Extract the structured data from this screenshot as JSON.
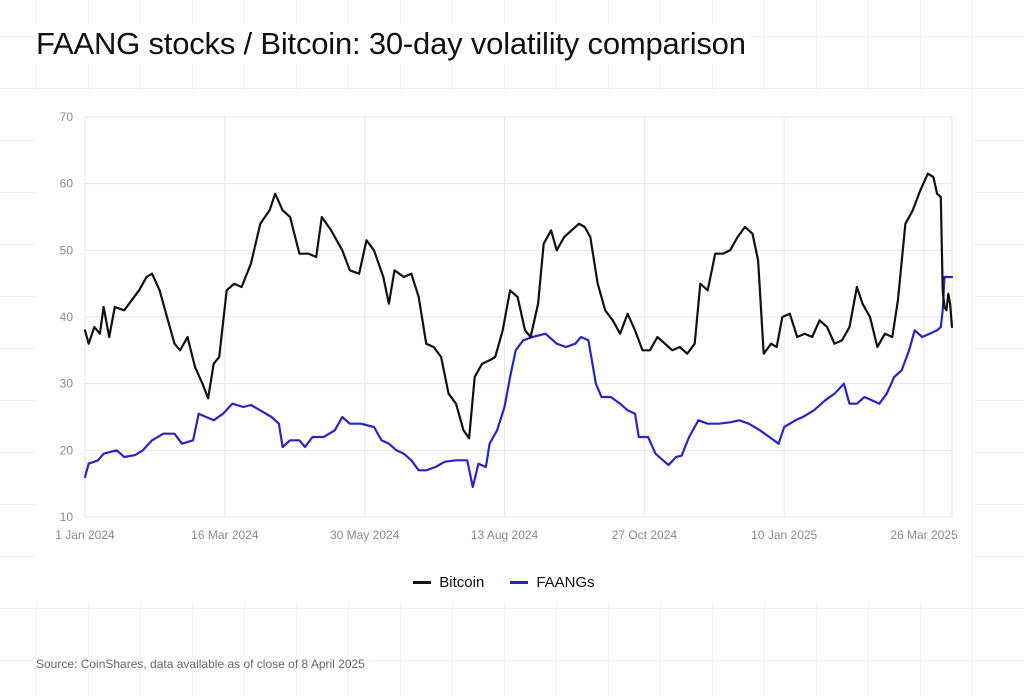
{
  "title": "FAANG stocks / Bitcoin: 30-day volatility comparison",
  "source": "Source: CoinShares, data available as of close of 8 April 2025",
  "chart_data": {
    "type": "line",
    "ylim": [
      10,
      70
    ],
    "yticks": [
      10,
      20,
      30,
      40,
      50,
      60,
      70
    ],
    "xlim": [
      "2024-01-01",
      "2025-04-10"
    ],
    "xticks": [
      {
        "date": "2024-01-01",
        "label": "1 Jan 2024"
      },
      {
        "date": "2024-03-16",
        "label": "16 Mar 2024"
      },
      {
        "date": "2024-05-30",
        "label": "30 May 2024"
      },
      {
        "date": "2024-08-13",
        "label": "13 Aug 2024"
      },
      {
        "date": "2024-10-27",
        "label": "27 Oct 2024"
      },
      {
        "date": "2025-01-10",
        "label": "10 Jan 2025"
      },
      {
        "date": "2025-03-26",
        "label": "26 Mar 2025"
      }
    ],
    "grid": true,
    "legend_position": "bottom",
    "series": [
      {
        "name": "Bitcoin",
        "color": "#111111",
        "points": [
          [
            "2024-01-01",
            38
          ],
          [
            "2024-01-03",
            36
          ],
          [
            "2024-01-06",
            38.5
          ],
          [
            "2024-01-09",
            37.5
          ],
          [
            "2024-01-11",
            41.5
          ],
          [
            "2024-01-14",
            37
          ],
          [
            "2024-01-17",
            41.5
          ],
          [
            "2024-01-22",
            41
          ],
          [
            "2024-01-26",
            42.5
          ],
          [
            "2024-01-30",
            44
          ],
          [
            "2024-02-03",
            46
          ],
          [
            "2024-02-06",
            46.5
          ],
          [
            "2024-02-10",
            44
          ],
          [
            "2024-02-14",
            40
          ],
          [
            "2024-02-18",
            36
          ],
          [
            "2024-02-21",
            35
          ],
          [
            "2024-02-25",
            37
          ],
          [
            "2024-02-29",
            32.5
          ],
          [
            "2024-03-04",
            30
          ],
          [
            "2024-03-07",
            27.8
          ],
          [
            "2024-03-10",
            33
          ],
          [
            "2024-03-13",
            34
          ],
          [
            "2024-03-17",
            44
          ],
          [
            "2024-03-21",
            45
          ],
          [
            "2024-03-25",
            44.5
          ],
          [
            "2024-03-30",
            48
          ],
          [
            "2024-04-04",
            54
          ],
          [
            "2024-04-09",
            56
          ],
          [
            "2024-04-12",
            58.5
          ],
          [
            "2024-04-16",
            56
          ],
          [
            "2024-04-20",
            55
          ],
          [
            "2024-04-25",
            49.5
          ],
          [
            "2024-04-30",
            49.5
          ],
          [
            "2024-05-04",
            49
          ],
          [
            "2024-05-07",
            55
          ],
          [
            "2024-05-12",
            53
          ],
          [
            "2024-05-18",
            50
          ],
          [
            "2024-05-22",
            47
          ],
          [
            "2024-05-27",
            46.5
          ],
          [
            "2024-05-31",
            51.5
          ],
          [
            "2024-06-04",
            50
          ],
          [
            "2024-06-09",
            46
          ],
          [
            "2024-06-12",
            42
          ],
          [
            "2024-06-15",
            47
          ],
          [
            "2024-06-20",
            46
          ],
          [
            "2024-06-24",
            46.5
          ],
          [
            "2024-06-28",
            43
          ],
          [
            "2024-07-02",
            36
          ],
          [
            "2024-07-06",
            35.5
          ],
          [
            "2024-07-10",
            34
          ],
          [
            "2024-07-14",
            28.5
          ],
          [
            "2024-07-18",
            27
          ],
          [
            "2024-07-22",
            23
          ],
          [
            "2024-07-25",
            21.8
          ],
          [
            "2024-07-28",
            31
          ],
          [
            "2024-08-01",
            33
          ],
          [
            "2024-08-05",
            33.5
          ],
          [
            "2024-08-08",
            34
          ],
          [
            "2024-08-12",
            38
          ],
          [
            "2024-08-16",
            44
          ],
          [
            "2024-08-20",
            43
          ],
          [
            "2024-08-24",
            38
          ],
          [
            "2024-08-27",
            37
          ],
          [
            "2024-08-31",
            42
          ],
          [
            "2024-09-03",
            51
          ],
          [
            "2024-09-07",
            53
          ],
          [
            "2024-09-10",
            50
          ],
          [
            "2024-09-14",
            52
          ],
          [
            "2024-09-18",
            53
          ],
          [
            "2024-09-22",
            54
          ],
          [
            "2024-09-25",
            53.5
          ],
          [
            "2024-09-28",
            52
          ],
          [
            "2024-10-02",
            45
          ],
          [
            "2024-10-06",
            41
          ],
          [
            "2024-10-10",
            39.5
          ],
          [
            "2024-10-14",
            37.5
          ],
          [
            "2024-10-18",
            40.5
          ],
          [
            "2024-10-22",
            38
          ],
          [
            "2024-10-26",
            35
          ],
          [
            "2024-10-30",
            35
          ],
          [
            "2024-11-03",
            37
          ],
          [
            "2024-11-07",
            36
          ],
          [
            "2024-11-11",
            35
          ],
          [
            "2024-11-15",
            35.5
          ],
          [
            "2024-11-19",
            34.5
          ],
          [
            "2024-11-23",
            36
          ],
          [
            "2024-11-26",
            45
          ],
          [
            "2024-11-30",
            44
          ],
          [
            "2024-12-04",
            49.5
          ],
          [
            "2024-12-08",
            49.5
          ],
          [
            "2024-12-12",
            50
          ],
          [
            "2024-12-16",
            52
          ],
          [
            "2024-12-20",
            53.5
          ],
          [
            "2024-12-24",
            52.5
          ],
          [
            "2024-12-27",
            48.5
          ],
          [
            "2024-12-30",
            34.5
          ],
          [
            "2025-01-03",
            36
          ],
          [
            "2025-01-06",
            35.5
          ],
          [
            "2025-01-09",
            40
          ],
          [
            "2025-01-13",
            40.5
          ],
          [
            "2025-01-17",
            37
          ],
          [
            "2025-01-21",
            37.5
          ],
          [
            "2025-01-25",
            37
          ],
          [
            "2025-01-29",
            39.5
          ],
          [
            "2025-02-02",
            38.5
          ],
          [
            "2025-02-06",
            36
          ],
          [
            "2025-02-10",
            36.5
          ],
          [
            "2025-02-14",
            38.5
          ],
          [
            "2025-02-18",
            44.5
          ],
          [
            "2025-02-21",
            42
          ],
          [
            "2025-02-25",
            40
          ],
          [
            "2025-03-01",
            35.5
          ],
          [
            "2025-03-05",
            37.5
          ],
          [
            "2025-03-09",
            37
          ],
          [
            "2025-03-12",
            42.5
          ],
          [
            "2025-03-16",
            54
          ],
          [
            "2025-03-20",
            56
          ],
          [
            "2025-03-24",
            59
          ],
          [
            "2025-03-28",
            61.5
          ],
          [
            "2025-03-31",
            61
          ],
          [
            "2025-04-02",
            58.5
          ],
          [
            "2025-04-04",
            58
          ],
          [
            "2025-04-05",
            44
          ],
          [
            "2025-04-06",
            41.5
          ],
          [
            "2025-04-07",
            41
          ],
          [
            "2025-04-08",
            43.5
          ],
          [
            "2025-04-09",
            42
          ],
          [
            "2025-04-10",
            38.5
          ]
        ]
      },
      {
        "name": "FAANGs",
        "color": "#2b25bf",
        "points": [
          [
            "2024-01-01",
            16
          ],
          [
            "2024-01-03",
            18
          ],
          [
            "2024-01-08",
            18.5
          ],
          [
            "2024-01-11",
            19.5
          ],
          [
            "2024-01-18",
            20
          ],
          [
            "2024-01-22",
            19
          ],
          [
            "2024-01-28",
            19.3
          ],
          [
            "2024-02-01",
            20
          ],
          [
            "2024-02-06",
            21.5
          ],
          [
            "2024-02-12",
            22.5
          ],
          [
            "2024-02-18",
            22.5
          ],
          [
            "2024-02-22",
            21
          ],
          [
            "2024-02-28",
            21.5
          ],
          [
            "2024-03-02",
            25.5
          ],
          [
            "2024-03-06",
            25
          ],
          [
            "2024-03-10",
            24.5
          ],
          [
            "2024-03-15",
            25.5
          ],
          [
            "2024-03-20",
            27
          ],
          [
            "2024-03-26",
            26.5
          ],
          [
            "2024-03-30",
            26.8
          ],
          [
            "2024-04-04",
            26
          ],
          [
            "2024-04-10",
            25
          ],
          [
            "2024-04-14",
            24
          ],
          [
            "2024-04-16",
            20.5
          ],
          [
            "2024-04-20",
            21.5
          ],
          [
            "2024-04-25",
            21.5
          ],
          [
            "2024-04-28",
            20.5
          ],
          [
            "2024-05-02",
            22
          ],
          [
            "2024-05-08",
            22
          ],
          [
            "2024-05-14",
            23
          ],
          [
            "2024-05-18",
            25
          ],
          [
            "2024-05-22",
            24
          ],
          [
            "2024-05-28",
            24
          ],
          [
            "2024-06-04",
            23.5
          ],
          [
            "2024-06-08",
            21.5
          ],
          [
            "2024-06-12",
            21
          ],
          [
            "2024-06-16",
            20
          ],
          [
            "2024-06-20",
            19.5
          ],
          [
            "2024-06-24",
            18.5
          ],
          [
            "2024-06-28",
            17
          ],
          [
            "2024-07-02",
            17
          ],
          [
            "2024-07-07",
            17.5
          ],
          [
            "2024-07-12",
            18.3
          ],
          [
            "2024-07-18",
            18.5
          ],
          [
            "2024-07-24",
            18.5
          ],
          [
            "2024-07-27",
            14.5
          ],
          [
            "2024-07-30",
            18
          ],
          [
            "2024-08-03",
            17.5
          ],
          [
            "2024-08-05",
            21
          ],
          [
            "2024-08-09",
            23
          ],
          [
            "2024-08-13",
            26.5
          ],
          [
            "2024-08-16",
            31
          ],
          [
            "2024-08-19",
            35
          ],
          [
            "2024-08-23",
            36.5
          ],
          [
            "2024-08-28",
            37
          ],
          [
            "2024-09-04",
            37.5
          ],
          [
            "2024-09-10",
            36
          ],
          [
            "2024-09-15",
            35.5
          ],
          [
            "2024-09-20",
            36
          ],
          [
            "2024-09-23",
            37
          ],
          [
            "2024-09-27",
            36.5
          ],
          [
            "2024-10-01",
            30
          ],
          [
            "2024-10-04",
            28
          ],
          [
            "2024-10-09",
            28
          ],
          [
            "2024-10-14",
            27
          ],
          [
            "2024-10-18",
            26
          ],
          [
            "2024-10-22",
            25.5
          ],
          [
            "2024-10-24",
            22
          ],
          [
            "2024-10-29",
            22
          ],
          [
            "2024-11-02",
            19.5
          ],
          [
            "2024-11-06",
            18.5
          ],
          [
            "2024-11-09",
            17.8
          ],
          [
            "2024-11-13",
            19
          ],
          [
            "2024-11-16",
            19.2
          ],
          [
            "2024-11-20",
            22
          ],
          [
            "2024-11-25",
            24.5
          ],
          [
            "2024-11-30",
            24
          ],
          [
            "2024-12-06",
            24
          ],
          [
            "2024-12-12",
            24.2
          ],
          [
            "2024-12-17",
            24.5
          ],
          [
            "2024-12-22",
            24
          ],
          [
            "2024-12-28",
            23
          ],
          [
            "2025-01-02",
            22
          ],
          [
            "2025-01-07",
            21
          ],
          [
            "2025-01-10",
            23.5
          ],
          [
            "2025-01-16",
            24.5
          ],
          [
            "2025-01-20",
            25
          ],
          [
            "2025-01-26",
            26
          ],
          [
            "2025-02-01",
            27.5
          ],
          [
            "2025-02-06",
            28.5
          ],
          [
            "2025-02-11",
            30
          ],
          [
            "2025-02-14",
            27
          ],
          [
            "2025-02-18",
            27
          ],
          [
            "2025-02-22",
            28
          ],
          [
            "2025-02-26",
            27.5
          ],
          [
            "2025-03-02",
            27
          ],
          [
            "2025-03-06",
            28.5
          ],
          [
            "2025-03-10",
            31
          ],
          [
            "2025-03-14",
            32
          ],
          [
            "2025-03-18",
            35
          ],
          [
            "2025-03-21",
            38
          ],
          [
            "2025-03-25",
            37
          ],
          [
            "2025-03-29",
            37.5
          ],
          [
            "2025-04-02",
            38
          ],
          [
            "2025-04-04",
            38.5
          ],
          [
            "2025-04-05",
            41
          ],
          [
            "2025-04-06",
            46
          ],
          [
            "2025-04-10",
            46
          ]
        ]
      }
    ]
  }
}
